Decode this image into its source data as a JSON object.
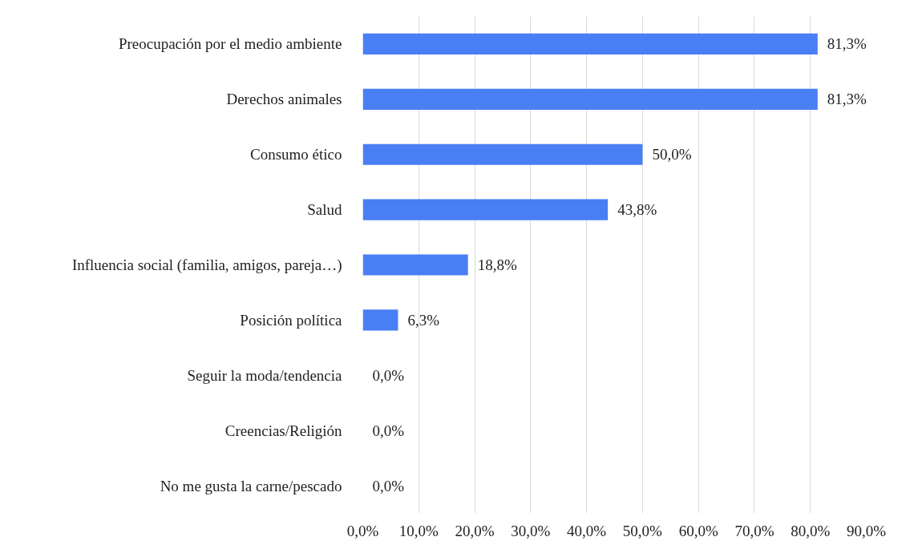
{
  "chart_data": {
    "type": "bar",
    "orientation": "horizontal",
    "categories": [
      "Preocupación por el medio ambiente",
      "Derechos animales",
      "Consumo ético",
      "Salud",
      "Influencia social (familia, amigos, pareja…)",
      "Posición política",
      "Seguir la moda/tendencia",
      "Creencias/Religión",
      "No me gusta la carne/pescado"
    ],
    "values": [
      81.3,
      81.3,
      50.0,
      43.8,
      18.8,
      6.3,
      0.0,
      0.0,
      0.0
    ],
    "value_labels": [
      "81,3%",
      "81,3%",
      "50,0%",
      "43,8%",
      "18,8%",
      "6,3%",
      "0,0%",
      "0,0%",
      "0,0%"
    ],
    "color": "#4a7ef5",
    "xlim": [
      0,
      90
    ],
    "xticks": [
      {
        "value": 0,
        "label": "0,0%"
      },
      {
        "value": 10,
        "label": "10,0%"
      },
      {
        "value": 20,
        "label": "20,0%"
      },
      {
        "value": 30,
        "label": "30,0%"
      },
      {
        "value": 40,
        "label": "40,0%"
      },
      {
        "value": 50,
        "label": "50,0%"
      },
      {
        "value": 60,
        "label": "60,0%"
      },
      {
        "value": 70,
        "label": "70,0%"
      },
      {
        "value": 80,
        "label": "80,0%"
      },
      {
        "value": 90,
        "label": "90,0%"
      }
    ],
    "grid": "x"
  }
}
